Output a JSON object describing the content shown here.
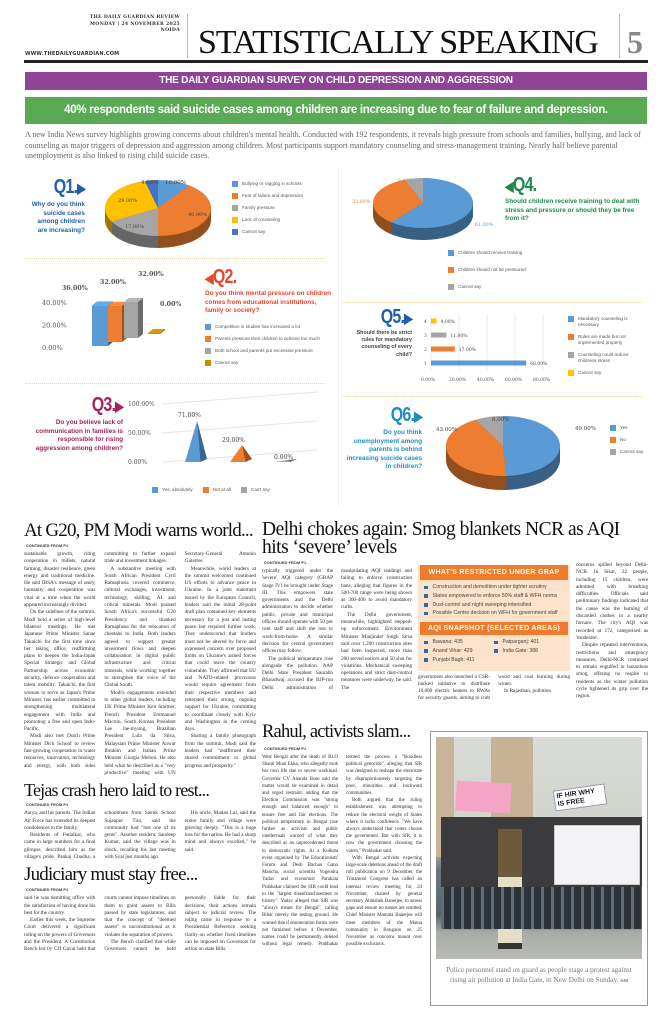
{
  "masthead": {
    "paper": "THE DAILY GUARDIAN REVIEW",
    "date": "MONDAY | 24 NOVEMBER 2025",
    "city": "NOIDA",
    "website": "WWW.THEDAILYGUARDIAN.COM",
    "section_title": "STATISTICALLY SPEAKING",
    "page_number": "5"
  },
  "survey": {
    "banner": "THE DAILY GUARDIAN SURVEY ON CHILD DEPRESSION AND AGGRESSION",
    "highlight": "40% respondents said suicide cases among children are increasing due to fear of failure and depression.",
    "intro": "A new India News survey highlights growing concerns about children's mental health. Conducted with 192 respondents, it reveals high pressure from schools and families, bullying, and lack of counseling as major triggers of depression and aggression among children. Most participants support mandatory counseling and stress-management training. Nearly half believe parental unemployment is also linked to rising child suicide cases."
  },
  "colors": {
    "purple": "#8e4397",
    "green": "#5aaa55",
    "blue": "#5b9bd5",
    "orange": "#ed7d31",
    "gray": "#a5a5a5",
    "yellow": "#ffc000",
    "dark_blue": "#4472c4",
    "gold": "#bf9000",
    "q1": "#1f5fa8",
    "q2": "#e8472a",
    "q3": "#a3235f",
    "q4": "#1d8a4c",
    "q5": "#1f5fa8",
    "q6": "#1a8fbf"
  },
  "chart_data": [
    {
      "id": "q1",
      "type": "pie",
      "number": "Q1.",
      "question": "Why do you think suicide cases among children are increasing?",
      "categories": [
        "Bullying or ragging in schools",
        "Fear of failure and depression",
        "Family pressure",
        "Lack of counseling",
        "Cannot say"
      ],
      "values": [
        10,
        40,
        17,
        29,
        4
      ],
      "labels": [
        "10.00%",
        "40.00%",
        "17.00%",
        "29.00%",
        "4.00%"
      ]
    },
    {
      "id": "q2",
      "type": "bar",
      "number": "Q2.",
      "question": "Do you think mental pressure on children comes from educational institutions, family or society?",
      "categories": [
        "Competition in studies has increased a lot",
        "Parents pressure their children to achieve too much",
        "Both school and parents put excessive pressure",
        "Cannot say"
      ],
      "values": [
        36,
        32,
        32,
        0
      ],
      "labels": [
        "36.00%",
        "32.00%",
        "32.00%",
        "0.00%"
      ],
      "yticks": [
        "0.00%",
        "20.00%",
        "40.00%"
      ],
      "ylim": [
        0,
        40
      ]
    },
    {
      "id": "q3",
      "type": "bar",
      "number": "Q3.",
      "question": "Do you believe lack of communication in families is responsible for rising aggression among children?",
      "categories": [
        "Yes, absolutely",
        "Not at all",
        "Can't say"
      ],
      "values": [
        71,
        29,
        0
      ],
      "labels": [
        "71.00%",
        "29.00%",
        "0.00%"
      ],
      "yticks": [
        "0.00%",
        "50.00%",
        "100.00%"
      ],
      "ylim": [
        0,
        100
      ]
    },
    {
      "id": "q4",
      "type": "pie",
      "number": "Q4.",
      "question": "Should children receive training to deal with stress and pressure or should they be free from it?",
      "categories": [
        "Children should receive training",
        "Children should not be pressured",
        "Cannot say"
      ],
      "values": [
        61,
        33,
        6
      ],
      "labels": [
        "61.00%",
        "33.00%",
        "6.00%"
      ]
    },
    {
      "id": "q5",
      "type": "bar",
      "orientation": "horizontal",
      "number": "Q5.",
      "question": "Should there be strict rules for mandatory counseling of every child?",
      "categories": [
        "Mandatory counseling is necessary",
        "Rules are made but not implemented properly",
        "Counseling could reduce childrens stress",
        "Cannot say"
      ],
      "rows": [
        "1",
        "2",
        "3",
        "4"
      ],
      "values": [
        68,
        17,
        11,
        4
      ],
      "labels": [
        "68.00%",
        "17.00%",
        "11.00%",
        "4.00%"
      ],
      "xticks": [
        "0.00%",
        "20.00%",
        "40.00%",
        "60.00%",
        "80.00%"
      ],
      "xlim": [
        0,
        80
      ]
    },
    {
      "id": "q6",
      "type": "pie",
      "number": "Q6.",
      "question": "Do you think unemployment among parents is behind increasing suicide cases in children?",
      "categories": [
        "Yes",
        "No",
        "Cannot say"
      ],
      "values": [
        49,
        43,
        8
      ],
      "labels": [
        "49.00%",
        "43.00%",
        "8.00%"
      ]
    }
  ],
  "articles": {
    "g20": {
      "headline": "At G20, PM Modi warns world...",
      "continued": "CONTINUED FROM P1",
      "paragraphs": [
        "sustainable growth, citing cooperation in millets, natural farming, disaster resilience, green energy and traditional medicine. He said IBSA's message of unity, humanity and cooperation was vital at a time when the world appeared increasingly divided.",
        "On the sidelines of the summit, Modi held a series of high-level bilateral meetings. He met Japanese Prime Minister Sanae Takaichi for the first time since her taking office, reaffirming plans to deepen the India-Japan Special Strategic and Global Partnership across economic security, defence cooperation and talent mobility. Takaichi, the first woman to serve as Japan's Prime Minister, has earlier committed to strengthening multilateral engagement with India and promoting a free and open Indo-Pacific.",
        "Modi also met Dutch Prime Minister Dick Schoof to review fast-growing cooperation in water resources, innovation, technology and energy, with both sides committing to further expand trade and investment linkages.",
        "A substantive meeting with South African President Cyril Ramaphosa covered commerce, cultural exchanges, investment, technology, skilling, AI and critical minerals. Modi praised South Africa's successful G20 Presidency and thanked Ramaphosa for the relocation of cheetahs to India. Both leaders agreed to support greater investment flows and deepen collaboration in digital public infrastructure and critical minerals, while working together to strengthen the voice of the Global South.",
        "Modi's engagements extended to other global leaders, including UK Prime Minister Keir Starmer, French President Emmanuel Macron, South Korean President Lee Jae-myung, Brazilian President Lula da Silva, Malaysian Prime Minister Anwar Ibrahim and Italian Prime Minister Giorgia Meloni. He also held what he described as a \"very productive\" meeting with UN Secretary-General Antonio Guterres.",
        "Meanwhile, world leaders at the summit welcomed continued US efforts to advance peace in Ukraine. In a joint statement issued by the European Council, leaders said the initial 28-point draft plan contained key elements necessary for a just and lasting peace but required further work. They underscored that borders must not be altered by force and expressed concern over proposed limits on Ukraine's armed forces that could leave the country vulnerable. They affirmed that EU and NATO-related provisions would require agreement from their respective members and reiterated their strong, ongoing support for Ukraine, committing to coordinate closely with Kyiv and Washington in the coming days.",
        "Sharing a family photograph from the summit, Modi said the leaders had \"reaffirmed their shared commitment to global progress and prosperity.\""
      ]
    },
    "tejas": {
      "headline": "Tejas crash hero laid to rest...",
      "continued": "CONTINUED FROM P1",
      "paragraphs": [
        "Aarya, and his parents. The Indian Air Force has extended its deepest condolences to the family.",
        "Residents of Patialkar, who came in large numbers for a final glimpse, described him as the village's pride. Pankaj Chadha, a schoolmate from Sainik School Sujanpur Tira, said the community had \"lost one of its gems\". Another resident, Sandeep Kumar, said the village was in shock, recalling his last meeting with Syal just months ago.",
        "His uncle, Madan Lal, said the entire family and village were grieving deeply. \"This is a huge loss for the nation. He had a sharp mind and always excelled,\" he said."
      ]
    },
    "judiciary": {
      "headline": "Judiciary must stay free...",
      "continued": "CONTINUED FROM P1",
      "paragraphs": [
        "said he was demitting office with the satisfaction of having done his best for the country.",
        "Earlier this week, the Supreme Court delivered a significant ruling on the powers of Governors and the President. A Constitution Bench led by CJI Gavai held that courts cannot impose timelines on them to grant assent to Bills passed by state legislatures, and that the concept of \"deemed assent\" is unconstitutional as it violates the separation of powers.",
        "The Bench clarified that while Governors cannot be held personally liable for their decisions, their actions remain subject to judicial review. The ruling came in response to a Presidential Reference seeking clarity on whether fixed timelines can be imposed on Governors for action on state Bills."
      ]
    },
    "delhi": {
      "headline": "Delhi chokes again: Smog blankets NCR as AQI hits ‘severe’ levels",
      "continued": "CONTINUED FROM P1",
      "paragraphs_left": [
        "typically triggered under the 'severe' AQI category (GRAP Stage IV) be brought under Stage III. This empowers state governments and the Delhi administration to decide whether public, private and municipal offices should operate with 50 per cent staff and shift the rest to work-from-home. A similar decision for central government offices may follow.",
        "The political temperature rose alongside the pollution. AAP Delhi State President Saurabh Bharadwaj accused the BJP-run Delhi administration of manipulating AQI readings and failing to enforce construction bans, alleging that figures in the 500-700 range were being shown as 300-400 to avoid mandatory curbs.",
        "The Delhi government, meanwhile, highlighted stepped-up enforcement. Environment Minister Manjinder Singh Sirsa said over 1,200 construction sites had been inspected, more than 200 served notices and 50 shut for violations. Mechanical sweeping operations and strict dust-control measures were underway, he said. The"
      ],
      "paragraphs_mid": [
        "government also launched a CSR-backed initiative to distribute 10,000 electric heaters to RWAs for security guards, aiming to curb wood and coal burning during winter.",
        "In Rajasthan, pollution"
      ],
      "paragraphs_right": [
        "concerns spilled beyond Delhi-NCR. In Sikar, 22 people, including 15 children, were admitted with breathing difficulties. Officials said preliminary findings indicated that the cause was the burning of discarded clothes in a nearby furnace. The city's AQI was recorded at 172, categorised as 'moderate'.",
        "Despite repeated interventions, restrictions and emergency measures, Delhi-NCR continued to remain engulfed in hazardous smog, offering no respite to residents as the winter pollution cycle tightened its grip over the region."
      ],
      "grap_box": {
        "title": "WHAT'S RESTRICTED UNDER GRAP",
        "items": [
          "Construction and demolition under tighter scrutiny",
          "States empowered to enforce 50% staff & WFH norms",
          "Dust-control and night sweeping intensified",
          "Possible Centre decision on WFH for government staff"
        ]
      },
      "aqi_box": {
        "title": "AQI SNAPSHOT (SELECTED AREAS)",
        "items": [
          "Bawana: 435",
          "Anand Vihar: 429",
          "Punjabi Bagh: 411",
          "Patparganj: 401",
          "India Gate: 388"
        ]
      }
    },
    "rahul": {
      "headline": "Rahul, activists slam...",
      "continued": "CONTINUED FROM P1",
      "paragraphs": [
        "West Bengal after the death of BLO Shanti Muni Ekka, who allegedly took her own life due to severe workload. Governor CV Ananda Bose said the matter would be examined in detail and urged restraint, adding that the Election Commission was \"strong enough and balanced enough\" to ensure free and fair elections. The political temperature in Bengal rose further as activists and public intellectuals warned of what they described as an unprecedented threat to democratic rights. At a Kolkata event organised by The Educationists' Forum and Desh Bachao Gano Mancha, social scientist Yogendra Yadav and economist Parakala Prabhakar claimed the SIR could lead to the \"largest disenfranchisement in history\". Yadav alleged that SIR was \"always meant for Bengal\", calling Bihar merely the testing ground. He warned that if enumeration forms were not furnished before 4 December, names could be permanently deleted without legal remedy. Prabhakar termed the process a \"bloodless political genocide\", alleging that SIR was designed to reshape the electorate by disproportionately targeting the poor, minorities and backward communities.",
        "Both argued that the ruling establishment was attempting to reduce the electoral weight of States where it lacks confidence. \"We have always understood that voters choose the government. But with SIR, it is now the government choosing the voters,\" Prabhakar said.",
        "With Bengal activists expecting large-scale deletions ahead of the draft roll publication on 9 December, the Trinamool Congress has called an internal review meeting for 24 November, chaired by general secretary Abhishek Banerjee, to assess gaps and ensure no names are omitted. Chief Minister Mamata Banerjee will meet members of the Matua community in Bongaon on 25 November as concerns mount over possible exclusions."
      ]
    }
  },
  "photo": {
    "caption": "Police personnel stand on guard as people stage a protest against rising air pollution at India Gate, in New Delhi on Sunday.",
    "credit": "ANI",
    "placard_text": [
      "IF HIR",
      "WHY IS",
      "FREE"
    ]
  }
}
